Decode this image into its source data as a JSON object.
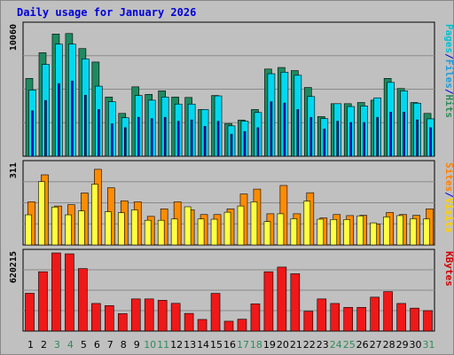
{
  "title": "Daily usage for January 2026",
  "chart_data": {
    "type": "bar",
    "title": "Daily usage for January 2026",
    "categories": [
      "1",
      "2",
      "3",
      "4",
      "5",
      "6",
      "7",
      "8",
      "9",
      "10",
      "11",
      "12",
      "13",
      "14",
      "15",
      "16",
      "17",
      "18",
      "19",
      "20",
      "21",
      "22",
      "23",
      "24",
      "25",
      "26",
      "27",
      "28",
      "29",
      "30",
      "31"
    ],
    "weekend_days": [
      "3",
      "4",
      "10",
      "11",
      "17",
      "18",
      "24",
      "25",
      "31"
    ],
    "panels": [
      {
        "id": "hits-files-pages",
        "ymax_label": "10060",
        "ymax": 10060,
        "right_label": [
          "Pages",
          "/",
          "Files",
          "/",
          "Hits"
        ],
        "right_colors": [
          "#00c0d0",
          "#0000d8",
          "#1d9bd8",
          "#0000d8",
          "#2e8b57"
        ],
        "series": [
          {
            "name": "Hits",
            "color": "#1e8a60",
            "values": [
              6000,
              7980,
              9420,
              9460,
              8300,
              7260,
              4560,
              3300,
              5350,
              4770,
              5040,
              4560,
              4530,
              3600,
              4680,
              2520,
              2790,
              3600,
              6720,
              6840,
              6600,
              5300,
              3060,
              4050,
              4050,
              4140,
              4320,
              6000,
              5220,
              4140,
              3300
            ]
          },
          {
            "name": "Files",
            "color": "#00d8f0",
            "values": [
              5100,
              7080,
              8640,
              8640,
              7500,
              5400,
              4200,
              2970,
              4680,
              4320,
              4560,
              4020,
              4020,
              3600,
              4650,
              2340,
              2700,
              3370,
              6360,
              6480,
              6240,
              4600,
              2900,
              4050,
              3830,
              3870,
              4500,
              5690,
              5040,
              4090,
              2880
            ]
          },
          {
            "name": "Pages",
            "color": "#1010d0",
            "values": [
              3500,
              4300,
              5600,
              5800,
              4700,
              3600,
              2500,
              2200,
              3000,
              2900,
              3000,
              2700,
              2800,
              2300,
              2700,
              1700,
              1900,
              2200,
              4200,
              4100,
              3600,
              3000,
              2100,
              2700,
              2600,
              2600,
              3000,
              3400,
              3400,
              2800,
              2200
            ]
          }
        ]
      },
      {
        "id": "visits-sites",
        "ymax_label": "311",
        "ymax": 311,
        "right_label": [
          "Sites",
          "/",
          "Visits"
        ],
        "right_colors": [
          "#ff8000",
          "#0000d8",
          "#ffd000"
        ],
        "series": [
          {
            "name": "Visits",
            "color": "#ff8c00",
            "values": [
              166,
              270,
              150,
              155,
              200,
              291,
              220,
              170,
              166,
              110,
              139,
              166,
              135,
              117,
              117,
              139,
              196,
              215,
              120,
              229,
              120,
              201,
              104,
              117,
              113,
              114,
              80,
              125,
              117,
              114,
              139
            ]
          },
          {
            "name": "Sites",
            "color": "#ffff40",
            "values": [
              116,
              244,
              146,
              116,
              131,
              234,
              128,
              124,
              135,
              95,
              95,
              100,
              147,
              100,
              99,
              126,
              150,
              166,
              90,
              120,
              101,
              169,
              99,
              98,
              98,
              112,
              85,
              108,
              113,
              101,
              100
            ]
          }
        ]
      },
      {
        "id": "kbytes",
        "ymax_label": "620215",
        "ymax": 620215,
        "right_label": [
          "KBytes"
        ],
        "right_colors": [
          "#d00000"
        ],
        "series": [
          {
            "name": "KBytes",
            "color": "#f01818",
            "values": [
              300000,
              471000,
              620215,
              613000,
              496000,
              219000,
              202000,
              138000,
              255000,
              255000,
              244000,
              220000,
              140000,
              92000,
              299000,
              78000,
              94000,
              216000,
              471000,
              508000,
              455000,
              157000,
              255000,
              219000,
              188000,
              188000,
              269000,
              313000,
              219000,
              182000,
              162000
            ]
          }
        ]
      }
    ]
  }
}
